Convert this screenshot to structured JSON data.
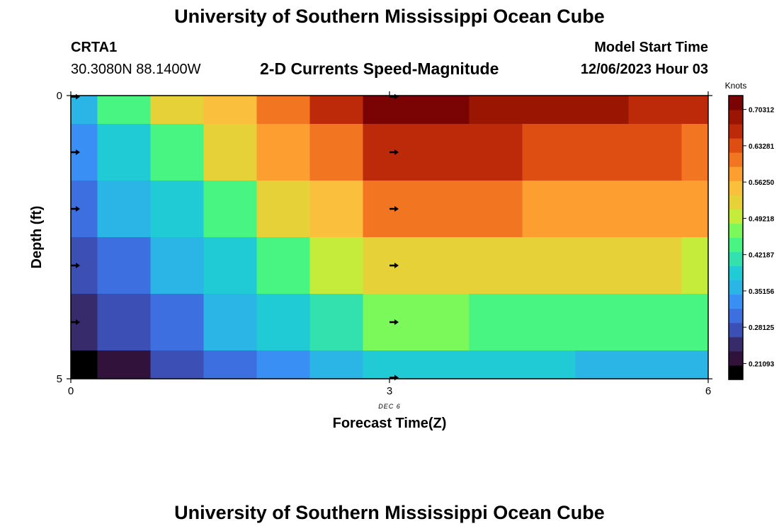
{
  "header": {
    "title": "University of Southern Mississippi Ocean Cube",
    "station": "CRTA1",
    "coords": "30.3080N  88.1400W",
    "chart_title": "2-D Currents Speed-Magnitude",
    "model_start_label": "Model Start Time",
    "model_start_value": "12/06/2023 Hour 03"
  },
  "footer": {
    "title": "University of Southern Mississippi Ocean Cube"
  },
  "colors": {
    "palette": [
      "#000000",
      "#30123b",
      "#372b6c",
      "#3c4fb4",
      "#3d6fe0",
      "#3a8ff5",
      "#2ab5e6",
      "#21cbd6",
      "#32e1ad",
      "#48f582",
      "#7bf85a",
      "#c5ec3a",
      "#e6d138",
      "#fbbf3e",
      "#fc9e30",
      "#f27521",
      "#de4e12",
      "#bd2a09",
      "#9b1503",
      "#7a0403"
    ]
  },
  "chart_data": {
    "type": "heatmap",
    "title": "2-D Currents Speed-Magnitude",
    "xlabel": "Forecast Time(Z)",
    "ylabel": "Depth (ft)",
    "x_tick_labels": [
      "0",
      "3",
      "6"
    ],
    "x_tick_values": [
      0,
      3,
      6
    ],
    "x_sublabel": "DEC 6",
    "y_tick_labels": [
      "0",
      "5"
    ],
    "y_tick_values": [
      0,
      5
    ],
    "xlim": [
      0,
      6
    ],
    "ylim": [
      0,
      5
    ],
    "cell_times": [
      0,
      0.5,
      1,
      1.5,
      2,
      2.5,
      3,
      3.5,
      4,
      4.5,
      5,
      5.5,
      6
    ],
    "depth_bands": [
      [
        0,
        0.5
      ],
      [
        0.5,
        1.5
      ],
      [
        1.5,
        2.5
      ],
      [
        2.5,
        3.5
      ],
      [
        3.5,
        4.5
      ],
      [
        4.5,
        5
      ]
    ],
    "values": [
      [
        0.36,
        0.43,
        0.51,
        0.56,
        0.62,
        0.67,
        0.72,
        0.71,
        0.7,
        0.69,
        0.68,
        0.67,
        0.67
      ],
      [
        0.33,
        0.38,
        0.44,
        0.51,
        0.57,
        0.62,
        0.66,
        0.65,
        0.65,
        0.64,
        0.63,
        0.63,
        0.62
      ],
      [
        0.31,
        0.35,
        0.39,
        0.45,
        0.51,
        0.55,
        0.61,
        0.6,
        0.6,
        0.59,
        0.59,
        0.58,
        0.57
      ],
      [
        0.28,
        0.31,
        0.35,
        0.39,
        0.44,
        0.49,
        0.53,
        0.53,
        0.52,
        0.52,
        0.51,
        0.51,
        0.5
      ],
      [
        0.24,
        0.28,
        0.31,
        0.35,
        0.38,
        0.42,
        0.47,
        0.46,
        0.45,
        0.45,
        0.44,
        0.44,
        0.43
      ],
      [
        0.18,
        0.23,
        0.27,
        0.3,
        0.33,
        0.36,
        0.39,
        0.39,
        0.38,
        0.38,
        0.37,
        0.37,
        0.36
      ]
    ],
    "arrows": [
      {
        "t": 0,
        "depth": 0
      },
      {
        "t": 0,
        "depth": 1
      },
      {
        "t": 0,
        "depth": 2
      },
      {
        "t": 0,
        "depth": 3
      },
      {
        "t": 0,
        "depth": 4
      },
      {
        "t": 3,
        "depth": 0
      },
      {
        "t": 3,
        "depth": 1
      },
      {
        "t": 3,
        "depth": 2
      },
      {
        "t": 3,
        "depth": 3
      },
      {
        "t": 3,
        "depth": 4
      },
      {
        "t": 3,
        "depth": 5
      }
    ],
    "colorbar": {
      "label": "Knots",
      "min": 0.18,
      "max": 0.73,
      "tick_values": [
        0.21093,
        0.28125,
        0.35156,
        0.42187,
        0.49218,
        0.5625,
        0.63281,
        0.70312
      ],
      "tick_labels": [
        "0.21093",
        "0.28125",
        "0.35156",
        "0.42187",
        "0.49218",
        "0.56250",
        "0.63281",
        "0.70312"
      ]
    }
  }
}
